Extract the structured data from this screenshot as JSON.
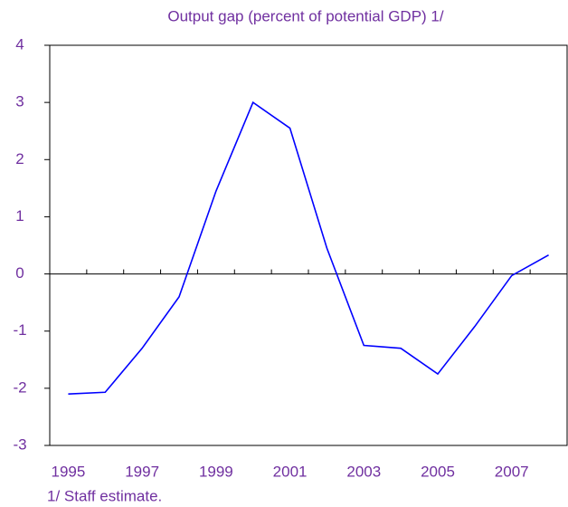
{
  "chart_data": {
    "type": "line",
    "title": "Output gap (percent of potential GDP)  1/",
    "categories": [
      "1995",
      null,
      "1997",
      null,
      "1999",
      null,
      "2001",
      null,
      "2003",
      null,
      "2005",
      null,
      "2007",
      null
    ],
    "series": [
      {
        "name": "Output gap",
        "color": "#0000ff",
        "values": [
          -2.1,
          -2.07,
          -1.3,
          -0.4,
          1.45,
          3.0,
          2.55,
          0.45,
          -1.25,
          -1.3,
          -1.75,
          -0.92,
          -0.03,
          0.33
        ]
      }
    ],
    "ylim": [
      -3,
      4
    ],
    "yticks": [
      -3,
      -2,
      -1,
      0,
      1,
      2,
      3,
      4
    ],
    "footnote": "1/ Staff estimate."
  }
}
